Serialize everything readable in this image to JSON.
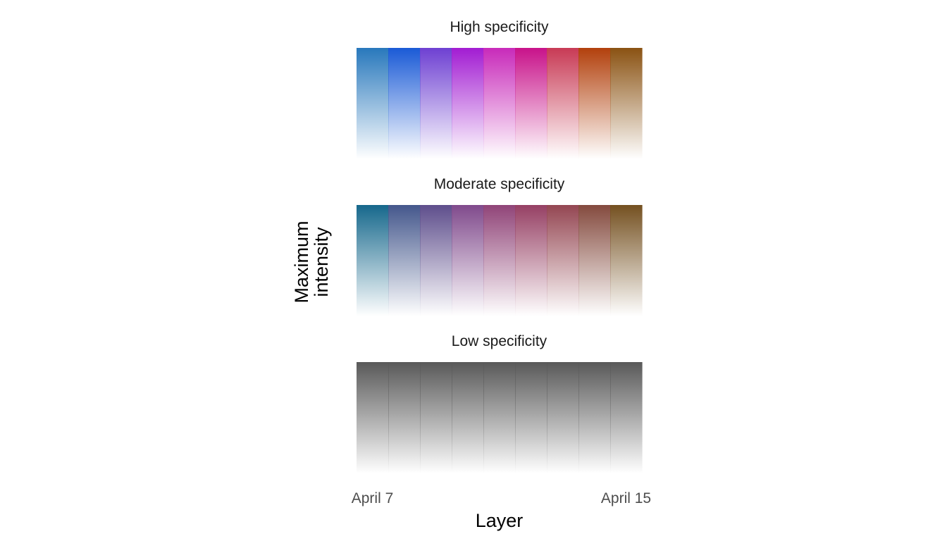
{
  "chart_data": {
    "type": "heatmap",
    "xlabel": "Layer",
    "ylabel_lines": [
      "Maximum",
      "intensity"
    ],
    "x_tick_labels": [
      "April 7",
      "April 15"
    ],
    "columns": 9,
    "grid": false,
    "fill": "vertical gradient from full color at top (maximum intensity) to white at bottom",
    "panels": [
      {
        "title": "High specificity",
        "colors": [
          "#2878bc",
          "#1a5ad6",
          "#6e40d2",
          "#a21cd2",
          "#c82aba",
          "#c8128a",
          "#c83a55",
          "#b2400c",
          "#8a5212"
        ]
      },
      {
        "title": "Moderate specificity",
        "colors": [
          "#16688c",
          "#44578c",
          "#5e4e8c",
          "#804a8c",
          "#904478",
          "#964064",
          "#944652",
          "#844a3e",
          "#745020"
        ]
      },
      {
        "title": "Low specificity",
        "colors": [
          "#595959",
          "#595959",
          "#595959",
          "#595959",
          "#595959",
          "#595959",
          "#595959",
          "#595959",
          "#595959"
        ]
      }
    ]
  }
}
